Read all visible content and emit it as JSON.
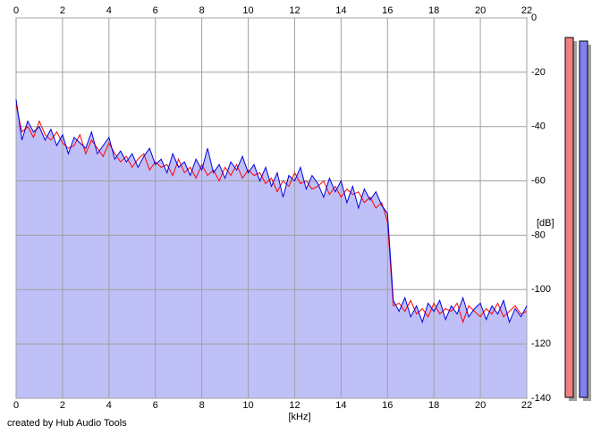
{
  "chart_data": {
    "type": "line",
    "x_label": "[kHz]",
    "y_label": "[dB]",
    "credit": "created by Hub Audio Tools",
    "xlim": [
      0,
      22
    ],
    "xticks": [
      0,
      2,
      4,
      6,
      8,
      10,
      12,
      14,
      16,
      18,
      20,
      22
    ],
    "ylim": [
      -140,
      0
    ],
    "yticks": [
      0,
      -20,
      -40,
      -60,
      -80,
      -100,
      -120,
      -140
    ],
    "grid": true,
    "area_color": "#c0c0f8",
    "x": [
      0,
      0.25,
      0.5,
      0.75,
      1,
      1.25,
      1.5,
      1.75,
      2,
      2.25,
      2.5,
      2.75,
      3,
      3.25,
      3.5,
      3.75,
      4,
      4.25,
      4.5,
      4.75,
      5,
      5.25,
      5.5,
      5.75,
      6,
      6.25,
      6.5,
      6.75,
      7,
      7.25,
      7.5,
      7.75,
      8,
      8.25,
      8.5,
      8.75,
      9,
      9.25,
      9.5,
      9.75,
      10,
      10.25,
      10.5,
      10.75,
      11,
      11.25,
      11.5,
      11.75,
      12,
      12.25,
      12.5,
      12.75,
      13,
      13.25,
      13.5,
      13.75,
      14,
      14.25,
      14.5,
      14.75,
      15,
      15.25,
      15.5,
      15.75,
      16,
      16.25,
      16.5,
      16.75,
      17,
      17.25,
      17.5,
      17.75,
      18,
      18.25,
      18.5,
      18.75,
      19,
      19.25,
      19.5,
      19.75,
      20,
      20.25,
      20.5,
      20.75,
      21,
      21.25,
      21.5,
      21.75,
      22
    ],
    "series": [
      {
        "color": "#ff0000",
        "values": [
          -32,
          -42,
          -40,
          -44,
          -38,
          -43,
          -45,
          -42,
          -46,
          -48,
          -47,
          -43,
          -50,
          -45,
          -48,
          -51,
          -46,
          -50,
          -53,
          -51,
          -55,
          -52,
          -50,
          -56,
          -53,
          -55,
          -54,
          -58,
          -52,
          -57,
          -55,
          -59,
          -54,
          -58,
          -56,
          -60,
          -55,
          -58,
          -54,
          -59,
          -56,
          -58,
          -57,
          -61,
          -59,
          -64,
          -60,
          -62,
          -57,
          -61,
          -60,
          -63,
          -62,
          -60,
          -65,
          -62,
          -66,
          -63,
          -65,
          -64,
          -68,
          -66,
          -70,
          -68,
          -75,
          -106,
          -105,
          -108,
          -104,
          -109,
          -107,
          -110,
          -105,
          -109,
          -107,
          -108,
          -105,
          -112,
          -106,
          -108,
          -110,
          -107,
          -109,
          -105,
          -110,
          -108,
          -106,
          -109,
          -108
        ]
      },
      {
        "color": "#0000e0",
        "values": [
          -30,
          -45,
          -38,
          -42,
          -40,
          -45,
          -41,
          -47,
          -43,
          -50,
          -44,
          -46,
          -48,
          -42,
          -50,
          -47,
          -44,
          -52,
          -49,
          -53,
          -50,
          -55,
          -51,
          -48,
          -54,
          -52,
          -57,
          -50,
          -55,
          -53,
          -58,
          -52,
          -56,
          -48,
          -57,
          -54,
          -59,
          -53,
          -56,
          -51,
          -57,
          -54,
          -60,
          -55,
          -62,
          -57,
          -66,
          -58,
          -60,
          -55,
          -63,
          -58,
          -61,
          -66,
          -59,
          -64,
          -60,
          -68,
          -62,
          -70,
          -63,
          -67,
          -64,
          -69,
          -72,
          -104,
          -108,
          -103,
          -110,
          -106,
          -112,
          -105,
          -108,
          -104,
          -111,
          -106,
          -109,
          -103,
          -110,
          -107,
          -105,
          -111,
          -106,
          -109,
          -104,
          -112,
          -107,
          -110,
          -106
        ]
      }
    ]
  }
}
